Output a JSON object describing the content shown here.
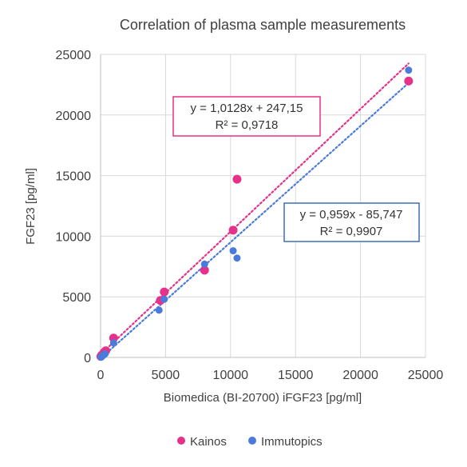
{
  "chart_data": {
    "type": "scatter",
    "title": "Correlation of plasma sample measurements",
    "xlabel": "Biomedica (BI-20700)  iFGF23 [pg/ml]",
    "ylabel": "FGF23 [pg/ml]",
    "xlim": [
      0,
      25000
    ],
    "ylim": [
      0,
      25000
    ],
    "xticks": [
      "0",
      "5000",
      "10000",
      "15000",
      "20000",
      "25000"
    ],
    "yticks": [
      "0",
      "5000",
      "10000",
      "15000",
      "20000",
      "25000"
    ],
    "grid": true,
    "legend_position": "bottom",
    "series": [
      {
        "name": "Kainos",
        "color": "#e6318a",
        "points": [
          {
            "x": 20,
            "y": 80
          },
          {
            "x": 60,
            "y": 150
          },
          {
            "x": 120,
            "y": 220
          },
          {
            "x": 200,
            "y": 300
          },
          {
            "x": 300,
            "y": 450
          },
          {
            "x": 400,
            "y": 550
          },
          {
            "x": 1000,
            "y": 1600
          },
          {
            "x": 4600,
            "y": 4700
          },
          {
            "x": 4900,
            "y": 5400
          },
          {
            "x": 8000,
            "y": 7200
          },
          {
            "x": 10200,
            "y": 10500
          },
          {
            "x": 10500,
            "y": 14700
          },
          {
            "x": 23700,
            "y": 22800
          }
        ],
        "trendline": {
          "slope": 1.0128,
          "intercept": 247.15,
          "x_range": [
            0,
            23700
          ]
        },
        "equation": "y = 1,0128x + 247,15",
        "r2": "R² = 0,9718"
      },
      {
        "name": "Immutopics",
        "color": "#4a7bdc",
        "points": [
          {
            "x": 20,
            "y": 30
          },
          {
            "x": 80,
            "y": 80
          },
          {
            "x": 150,
            "y": 130
          },
          {
            "x": 250,
            "y": 220
          },
          {
            "x": 350,
            "y": 300
          },
          {
            "x": 1000,
            "y": 1200
          },
          {
            "x": 4500,
            "y": 3900
          },
          {
            "x": 4900,
            "y": 4800
          },
          {
            "x": 8000,
            "y": 7700
          },
          {
            "x": 10200,
            "y": 8800
          },
          {
            "x": 10500,
            "y": 8200
          },
          {
            "x": 23700,
            "y": 23700
          }
        ],
        "trendline": {
          "slope": 0.959,
          "intercept": -85.747,
          "x_range": [
            0,
            23700
          ]
        },
        "equation": "y = 0,959x - 85,747",
        "r2": "R² = 0,9907"
      }
    ]
  }
}
